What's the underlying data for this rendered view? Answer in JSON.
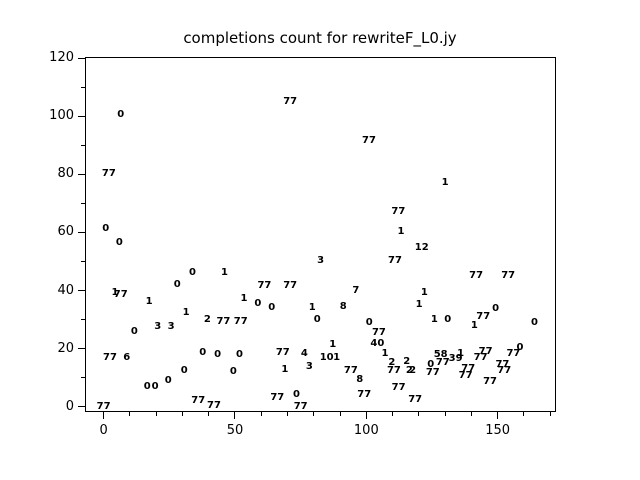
{
  "chart_data": {
    "type": "scatter",
    "title": "completions count for rewriteF_L0.jy",
    "xlabel": "",
    "ylabel": "",
    "marker_style": "each point drawn as its numeric text label",
    "grid": false,
    "legend": "none",
    "xlim": [
      -7.1,
      172.2
    ],
    "ylim": [
      -1.8,
      120.4
    ],
    "x_major_ticks": [
      {
        "value": 0,
        "label": "0"
      },
      {
        "value": 50,
        "label": "50"
      },
      {
        "value": 100,
        "label": "100"
      },
      {
        "value": 150,
        "label": "150"
      }
    ],
    "x_minor_ticks": [
      10,
      20,
      30,
      40,
      60,
      70,
      80,
      90,
      110,
      120,
      130,
      140,
      160,
      170
    ],
    "y_major_ticks": [
      {
        "value": 0,
        "label": "0"
      },
      {
        "value": 20,
        "label": "20"
      },
      {
        "value": 40,
        "label": "40"
      },
      {
        "value": 60,
        "label": "60"
      },
      {
        "value": 80,
        "label": "80"
      },
      {
        "value": 100,
        "label": "100"
      },
      {
        "value": 120,
        "label": "120"
      }
    ],
    "y_minor_ticks": [
      10,
      30,
      50,
      70,
      90,
      110
    ],
    "points": [
      {
        "x": 71.0,
        "y": 105.0,
        "label": "77"
      },
      {
        "x": 6.5,
        "y": 100.5,
        "label": "0"
      },
      {
        "x": 2.0,
        "y": 80.0,
        "label": "77"
      },
      {
        "x": 101.0,
        "y": 91.6,
        "label": "77"
      },
      {
        "x": 130.0,
        "y": 77.0,
        "label": "1"
      },
      {
        "x": 0.8,
        "y": 61.3,
        "label": "0"
      },
      {
        "x": 6.0,
        "y": 56.3,
        "label": "0"
      },
      {
        "x": 33.8,
        "y": 46.2,
        "label": "0"
      },
      {
        "x": 46.0,
        "y": 46.2,
        "label": "1"
      },
      {
        "x": 28.0,
        "y": 42.0,
        "label": "0"
      },
      {
        "x": 61.2,
        "y": 41.6,
        "label": "77"
      },
      {
        "x": 71.0,
        "y": 41.6,
        "label": "77"
      },
      {
        "x": 112.2,
        "y": 67.2,
        "label": "77"
      },
      {
        "x": 113.2,
        "y": 60.3,
        "label": "1"
      },
      {
        "x": 121.1,
        "y": 54.6,
        "label": "12"
      },
      {
        "x": 82.6,
        "y": 50.3,
        "label": "3"
      },
      {
        "x": 110.9,
        "y": 50.3,
        "label": "77"
      },
      {
        "x": 141.8,
        "y": 45.1,
        "label": "77"
      },
      {
        "x": 154.0,
        "y": 45.1,
        "label": "77"
      },
      {
        "x": 4.3,
        "y": 39.3,
        "label": "1"
      },
      {
        "x": 6.5,
        "y": 38.5,
        "label": "77"
      },
      {
        "x": 17.3,
        "y": 36.0,
        "label": "1"
      },
      {
        "x": 53.4,
        "y": 37.1,
        "label": "1"
      },
      {
        "x": 58.7,
        "y": 35.3,
        "label": "0"
      },
      {
        "x": 64.0,
        "y": 34.1,
        "label": "0"
      },
      {
        "x": 79.4,
        "y": 34.1,
        "label": "1"
      },
      {
        "x": 31.4,
        "y": 32.2,
        "label": "1"
      },
      {
        "x": 39.5,
        "y": 29.9,
        "label": "2"
      },
      {
        "x": 45.6,
        "y": 29.1,
        "label": "77"
      },
      {
        "x": 52.2,
        "y": 29.1,
        "label": "77"
      },
      {
        "x": 81.3,
        "y": 29.7,
        "label": "0"
      },
      {
        "x": 20.6,
        "y": 27.6,
        "label": "3"
      },
      {
        "x": 25.7,
        "y": 27.6,
        "label": "3"
      },
      {
        "x": 11.7,
        "y": 25.9,
        "label": "0"
      },
      {
        "x": 96.0,
        "y": 40.0,
        "label": "7"
      },
      {
        "x": 122.1,
        "y": 39.1,
        "label": "1"
      },
      {
        "x": 91.2,
        "y": 34.5,
        "label": "8"
      },
      {
        "x": 120.1,
        "y": 35.1,
        "label": "1"
      },
      {
        "x": 101.1,
        "y": 29.0,
        "label": "0"
      },
      {
        "x": 125.9,
        "y": 29.7,
        "label": "1"
      },
      {
        "x": 131.0,
        "y": 29.7,
        "label": "0"
      },
      {
        "x": 149.2,
        "y": 33.7,
        "label": "0"
      },
      {
        "x": 144.5,
        "y": 30.8,
        "label": "77"
      },
      {
        "x": 141.1,
        "y": 27.8,
        "label": "1"
      },
      {
        "x": 164.0,
        "y": 29.0,
        "label": "0"
      },
      {
        "x": 104.8,
        "y": 25.5,
        "label": "77"
      },
      {
        "x": 87.2,
        "y": 21.4,
        "label": "1"
      },
      {
        "x": 104.2,
        "y": 21.5,
        "label": "40"
      },
      {
        "x": 2.4,
        "y": 16.7,
        "label": "77"
      },
      {
        "x": 8.8,
        "y": 16.7,
        "label": "6"
      },
      {
        "x": 37.7,
        "y": 18.6,
        "label": "0"
      },
      {
        "x": 43.4,
        "y": 17.8,
        "label": "0"
      },
      {
        "x": 51.7,
        "y": 17.8,
        "label": "0"
      },
      {
        "x": 68.2,
        "y": 18.6,
        "label": "77"
      },
      {
        "x": 76.4,
        "y": 18.2,
        "label": "4"
      },
      {
        "x": 30.7,
        "y": 12.4,
        "label": "0"
      },
      {
        "x": 49.4,
        "y": 11.9,
        "label": "0"
      },
      {
        "x": 69.0,
        "y": 12.7,
        "label": "1"
      },
      {
        "x": 78.3,
        "y": 13.6,
        "label": "3"
      },
      {
        "x": 24.6,
        "y": 8.9,
        "label": "0"
      },
      {
        "x": 16.6,
        "y": 6.7,
        "label": "0"
      },
      {
        "x": 19.6,
        "y": 6.7,
        "label": "0"
      },
      {
        "x": 36.0,
        "y": 2.0,
        "label": "77"
      },
      {
        "x": 42.0,
        "y": 0.3,
        "label": "77"
      },
      {
        "x": 66.1,
        "y": 2.9,
        "label": "77"
      },
      {
        "x": 73.4,
        "y": 4.0,
        "label": "0"
      },
      {
        "x": 75.0,
        "y": -0.2,
        "label": "77"
      },
      {
        "x": 0.0,
        "y": 0.0,
        "label": "77"
      },
      {
        "x": 84.9,
        "y": 16.8,
        "label": "10"
      },
      {
        "x": 88.7,
        "y": 16.8,
        "label": "1"
      },
      {
        "x": 94.1,
        "y": 12.4,
        "label": "77"
      },
      {
        "x": 107.1,
        "y": 18.1,
        "label": "1"
      },
      {
        "x": 109.7,
        "y": 15.0,
        "label": "2"
      },
      {
        "x": 110.5,
        "y": 12.4,
        "label": "77"
      },
      {
        "x": 115.4,
        "y": 15.5,
        "label": "2"
      },
      {
        "x": 116.4,
        "y": 12.4,
        "label": "2"
      },
      {
        "x": 117.6,
        "y": 12.4,
        "label": "2"
      },
      {
        "x": 97.5,
        "y": 9.2,
        "label": "8"
      },
      {
        "x": 99.2,
        "y": 4.2,
        "label": "77"
      },
      {
        "x": 112.3,
        "y": 6.4,
        "label": "77"
      },
      {
        "x": 118.6,
        "y": 2.2,
        "label": "77"
      },
      {
        "x": 124.5,
        "y": 14.4,
        "label": "0"
      },
      {
        "x": 125.3,
        "y": 11.7,
        "label": "77"
      },
      {
        "x": 128.3,
        "y": 17.8,
        "label": "58"
      },
      {
        "x": 129.1,
        "y": 15.0,
        "label": "77"
      },
      {
        "x": 134.0,
        "y": 16.4,
        "label": "39"
      },
      {
        "x": 135.9,
        "y": 18.1,
        "label": "1"
      },
      {
        "x": 138.8,
        "y": 12.9,
        "label": "77"
      },
      {
        "x": 137.8,
        "y": 10.7,
        "label": "77"
      },
      {
        "x": 143.5,
        "y": 16.9,
        "label": "77"
      },
      {
        "x": 145.4,
        "y": 19.0,
        "label": "77"
      },
      {
        "x": 147.1,
        "y": 8.6,
        "label": "77"
      },
      {
        "x": 151.8,
        "y": 14.4,
        "label": "77"
      },
      {
        "x": 152.5,
        "y": 12.3,
        "label": "77"
      },
      {
        "x": 156.0,
        "y": 18.1,
        "label": "77"
      },
      {
        "x": 158.5,
        "y": 20.1,
        "label": "0"
      }
    ]
  },
  "colors": {
    "foreground": "#000000",
    "background": "#ffffff"
  }
}
